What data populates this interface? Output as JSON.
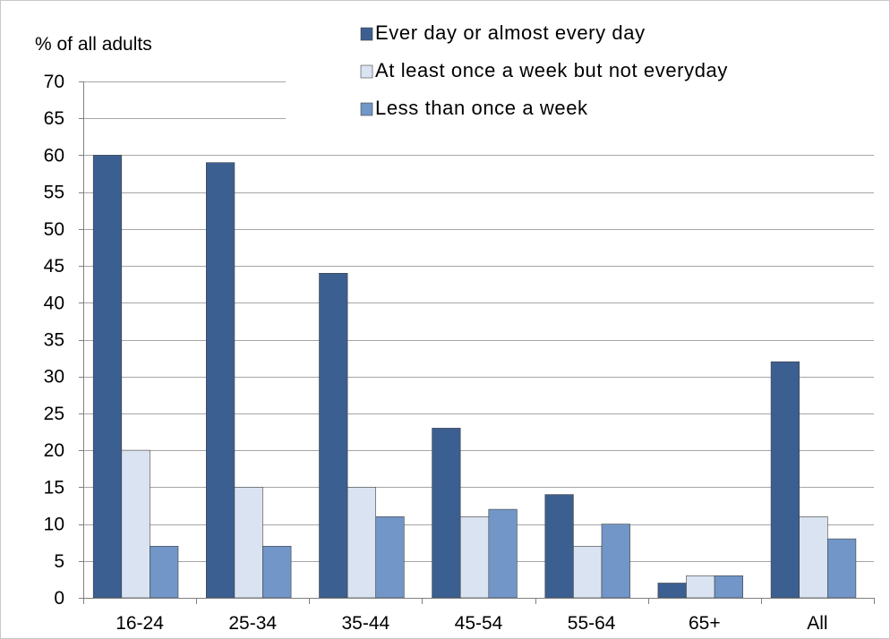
{
  "chart_data": {
    "type": "bar",
    "title": "",
    "xlabel": "",
    "ylabel": "% of all adults",
    "ylim": [
      0,
      70
    ],
    "yticks": [
      0,
      5,
      10,
      15,
      20,
      25,
      30,
      35,
      40,
      45,
      50,
      55,
      60,
      65,
      70
    ],
    "grid": true,
    "legend_position": "top-right",
    "categories": [
      "16-24",
      "25-34",
      "35-44",
      "45-54",
      "55-64",
      "65+",
      "All"
    ],
    "series": [
      {
        "name": "Ever day or almost every day",
        "color": "#3c5f91",
        "values": [
          60,
          59,
          44,
          23,
          14,
          2,
          32
        ]
      },
      {
        "name": "At least once a week but not everyday",
        "color": "#dae3f1",
        "values": [
          20,
          15,
          15,
          11,
          7,
          3,
          11
        ]
      },
      {
        "name": "Less than once a week",
        "color": "#7196c7",
        "values": [
          7,
          7,
          11,
          12,
          10,
          3,
          8
        ]
      }
    ]
  }
}
